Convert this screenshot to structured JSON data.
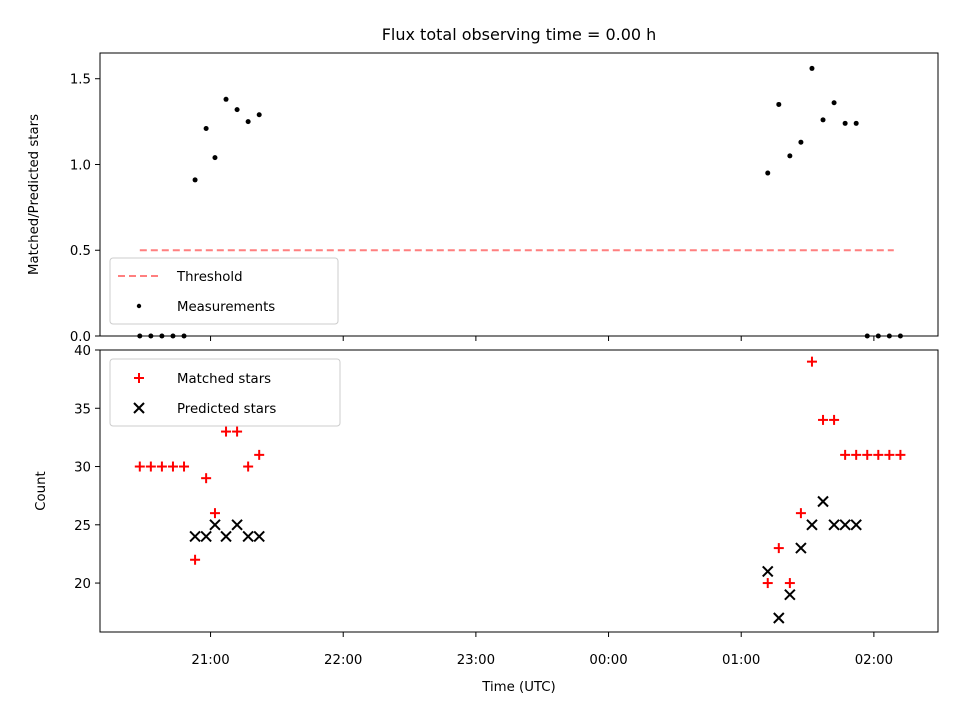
{
  "chart_data": [
    {
      "type": "scatter",
      "title": "Flux total observing time = 0.00 h",
      "xlabel": "",
      "ylabel": "Matched/Predicted stars",
      "ylim": [
        0,
        1.65
      ],
      "yticks": [
        "0.0",
        "0.5",
        "1.0",
        "1.5"
      ],
      "legend_position": "lower-left",
      "threshold": {
        "name": "Threshold",
        "value": 0.5,
        "x_start": "20:28",
        "x_end": "02:09",
        "color": "#ff7f7f",
        "style": "dashed"
      },
      "series": [
        {
          "name": "Measurements",
          "color": "#000000",
          "marker": "dot",
          "x": [
            "20:28",
            "20:33",
            "20:38",
            "20:43",
            "20:48",
            "20:53",
            "20:58",
            "21:02",
            "21:07",
            "21:12",
            "21:17",
            "21:22",
            "01:12",
            "01:17",
            "01:22",
            "01:27",
            "01:32",
            "01:37",
            "01:42",
            "01:47",
            "01:52",
            "01:57",
            "02:02",
            "02:07",
            "02:12"
          ],
          "y": [
            0,
            0,
            0,
            0,
            0,
            0.91,
            1.21,
            1.04,
            1.38,
            1.32,
            1.25,
            1.29,
            0.95,
            1.35,
            1.05,
            1.13,
            1.56,
            1.26,
            1.36,
            1.24,
            1.24,
            0,
            0,
            0,
            0
          ]
        }
      ]
    },
    {
      "type": "scatter",
      "title": "",
      "xlabel": "Time (UTC)",
      "ylabel": "Count",
      "ylim": [
        15.8,
        40
      ],
      "yticks": [
        "20",
        "25",
        "30",
        "35",
        "40"
      ],
      "xticks": [
        "21:00",
        "22:00",
        "23:00",
        "00:00",
        "01:00",
        "02:00"
      ],
      "legend_position": "top-left",
      "series": [
        {
          "name": "Matched stars",
          "color": "#ff0000",
          "marker": "plus",
          "x": [
            "20:28",
            "20:33",
            "20:38",
            "20:43",
            "20:48",
            "20:53",
            "20:58",
            "21:02",
            "21:07",
            "21:12",
            "21:17",
            "21:22",
            "01:12",
            "01:17",
            "01:22",
            "01:27",
            "01:32",
            "01:37",
            "01:42",
            "01:47",
            "01:52",
            "01:57",
            "02:02",
            "02:07",
            "02:12"
          ],
          "y": [
            30,
            30,
            30,
            30,
            30,
            22,
            29,
            26,
            33,
            33,
            30,
            31,
            20,
            23,
            20,
            26,
            39,
            34,
            34,
            31,
            31,
            31,
            31,
            31,
            31
          ]
        },
        {
          "name": "Predicted stars",
          "color": "#000000",
          "marker": "x",
          "x": [
            "20:53",
            "20:58",
            "21:02",
            "21:07",
            "21:12",
            "21:17",
            "21:22",
            "01:12",
            "01:17",
            "01:22",
            "01:27",
            "01:32",
            "01:37",
            "01:42",
            "01:47",
            "01:52"
          ],
          "y": [
            24,
            24,
            25,
            24,
            25,
            24,
            24,
            21,
            17,
            19,
            23,
            25,
            27,
            25,
            25,
            25
          ]
        }
      ]
    }
  ]
}
